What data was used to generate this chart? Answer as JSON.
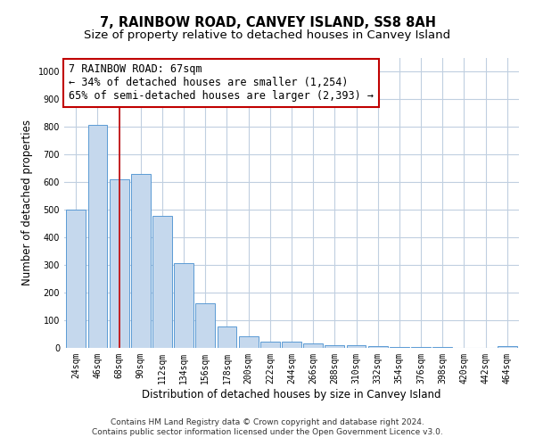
{
  "title": "7, RAINBOW ROAD, CANVEY ISLAND, SS8 8AH",
  "subtitle": "Size of property relative to detached houses in Canvey Island",
  "xlabel": "Distribution of detached houses by size in Canvey Island",
  "ylabel": "Number of detached properties",
  "categories": [
    "24sqm",
    "46sqm",
    "68sqm",
    "90sqm",
    "112sqm",
    "134sqm",
    "156sqm",
    "178sqm",
    "200sqm",
    "222sqm",
    "244sqm",
    "266sqm",
    "288sqm",
    "310sqm",
    "332sqm",
    "354sqm",
    "376sqm",
    "398sqm",
    "420sqm",
    "442sqm",
    "464sqm"
  ],
  "values": [
    500,
    808,
    612,
    630,
    477,
    307,
    160,
    78,
    43,
    22,
    22,
    15,
    10,
    9,
    6,
    4,
    3,
    2,
    1,
    1,
    8
  ],
  "bar_color": "#c5d8ed",
  "bar_edge_color": "#5b9bd5",
  "vline_x": 2.0,
  "vline_color": "#c00000",
  "annotation_line1": "7 RAINBOW ROAD: 67sqm",
  "annotation_line2": "← 34% of detached houses are smaller (1,254)",
  "annotation_line3": "65% of semi-detached houses are larger (2,393) →",
  "annotation_box_color": "#ffffff",
  "annotation_box_edge": "#c00000",
  "ylim": [
    0,
    1050
  ],
  "yticks": [
    0,
    100,
    200,
    300,
    400,
    500,
    600,
    700,
    800,
    900,
    1000
  ],
  "footer_line1": "Contains HM Land Registry data © Crown copyright and database right 2024.",
  "footer_line2": "Contains public sector information licensed under the Open Government Licence v3.0.",
  "bg_color": "#ffffff",
  "grid_color": "#c0cfe0",
  "title_fontsize": 10.5,
  "subtitle_fontsize": 9.5,
  "tick_fontsize": 7,
  "ylabel_fontsize": 8.5,
  "xlabel_fontsize": 8.5,
  "footer_fontsize": 6.5,
  "annot_fontsize": 8.5
}
